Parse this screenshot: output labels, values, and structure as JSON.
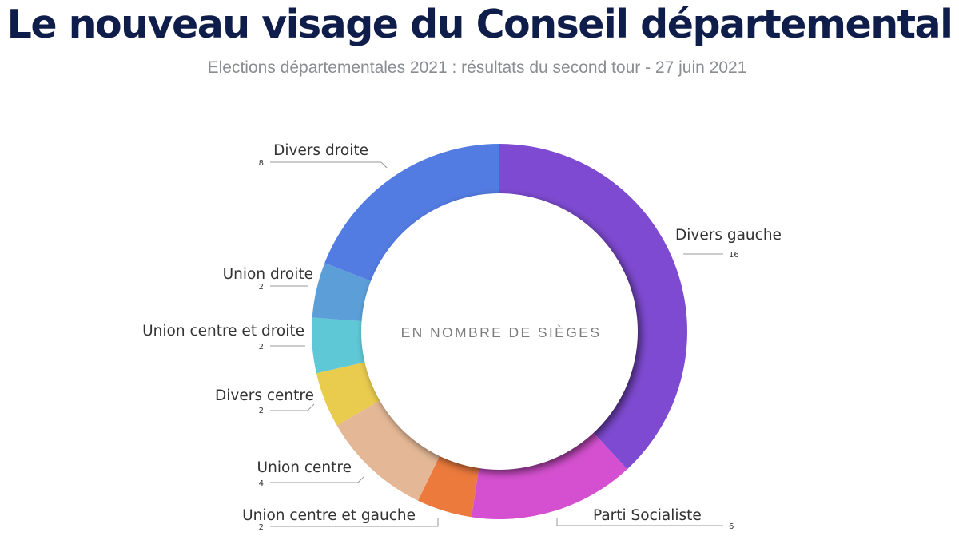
{
  "header": {
    "title": "Le nouveau visage du Conseil départemental",
    "subtitle": "Elections départementales 2021 : résultats du second tour - 27 juin 2021"
  },
  "chart_data": {
    "type": "pie",
    "variant": "donut",
    "center_label": "EN NOMBRE DE SIÈGES",
    "slices": [
      {
        "label": "Divers gauche",
        "value": 16,
        "color": "#7e4ad1"
      },
      {
        "label": "Parti Socialiste",
        "value": 6,
        "color": "#d550d0"
      },
      {
        "label": "Union centre et gauche",
        "value": 2,
        "color": "#eb7a3c"
      },
      {
        "label": "Union centre",
        "value": 4,
        "color": "#e4b896"
      },
      {
        "label": "Divers centre",
        "value": 2,
        "color": "#e9cb4e"
      },
      {
        "label": "Union centre et droite",
        "value": 2,
        "color": "#5fc8d6"
      },
      {
        "label": "Union droite",
        "value": 2,
        "color": "#5c9fd8"
      },
      {
        "label": "Divers droite",
        "value": 8,
        "color": "#537ce2"
      }
    ]
  }
}
